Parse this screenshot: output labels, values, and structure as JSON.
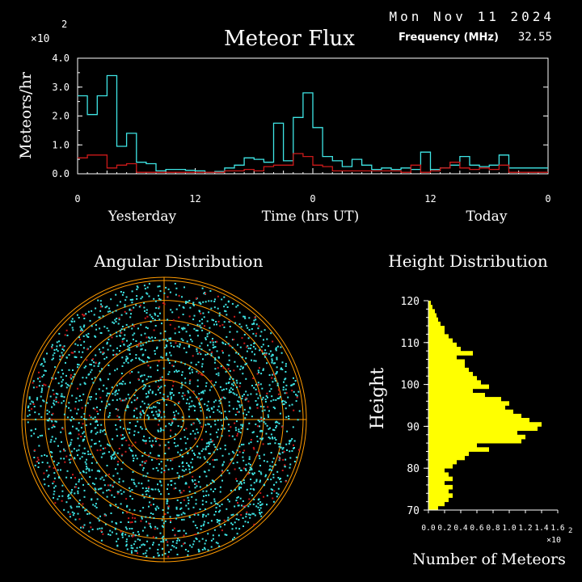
{
  "header": {
    "date": "Mon Nov 11 2024",
    "title": "Meteor Flux",
    "frequency_label": "Frequency (MHz)",
    "frequency_value": "32.55",
    "y_scale_base": "×10",
    "y_scale_exp": "2"
  },
  "colors": {
    "background": "#000000",
    "axes": "#ffffff",
    "cyan_series": "#3fe6e6",
    "red_series": "#cc1a1a",
    "height_bars": "#ffff00",
    "polar_rings": "#ff9a00"
  },
  "chart_data": [
    {
      "type": "line",
      "subtype": "step",
      "title": "Meteor Flux",
      "ylabel": "Meteors/hr",
      "xlabel": "Time (hrs UT)",
      "x_section_labels": [
        "Yesterday",
        "Today"
      ],
      "x_tick_labels": [
        "0",
        "12",
        "0",
        "12",
        "0"
      ],
      "y_tick_labels": [
        "0.0",
        "1.0",
        "2.0",
        "3.0",
        "4.0"
      ],
      "y_multiplier": "×10^2",
      "xlim": [
        0,
        48
      ],
      "ylim": [
        0,
        4.0
      ],
      "x": [
        0,
        1,
        2,
        3,
        4,
        5,
        6,
        7,
        8,
        9,
        10,
        11,
        12,
        13,
        14,
        15,
        16,
        17,
        18,
        19,
        20,
        21,
        22,
        23,
        24,
        25,
        26,
        27,
        28,
        29,
        30,
        31,
        32,
        33,
        34,
        35,
        36,
        37,
        38,
        39,
        40,
        41,
        42,
        43,
        44,
        45,
        46,
        47
      ],
      "series": [
        {
          "name": "",
          "color": "cyan",
          "values": [
            2.7,
            2.05,
            2.7,
            3.4,
            0.95,
            1.4,
            0.4,
            0.35,
            0.1,
            0.15,
            0.15,
            0.12,
            0.1,
            0.05,
            0.08,
            0.2,
            0.3,
            0.55,
            0.5,
            0.4,
            1.75,
            0.45,
            1.95,
            2.8,
            1.6,
            0.6,
            0.45,
            0.25,
            0.5,
            0.3,
            0.15,
            0.2,
            0.15,
            0.2,
            0.15,
            0.75,
            0.15,
            0.2,
            0.3,
            0.6,
            0.3,
            0.25,
            0.3,
            0.65,
            0.2,
            0.2,
            0.2,
            0.2
          ]
        },
        {
          "name": "",
          "color": "red",
          "values": [
            0.55,
            0.65,
            0.65,
            0.2,
            0.3,
            0.35,
            0.05,
            0.05,
            0.05,
            0.05,
            0.05,
            0.05,
            0.05,
            0.05,
            0.05,
            0.1,
            0.1,
            0.15,
            0.1,
            0.25,
            0.3,
            0.3,
            0.7,
            0.6,
            0.3,
            0.25,
            0.1,
            0.1,
            0.1,
            0.1,
            0.1,
            0.1,
            0.1,
            0.05,
            0.3,
            0.05,
            0.1,
            0.2,
            0.4,
            0.2,
            0.15,
            0.2,
            0.15,
            0.3,
            0.05,
            0.05,
            0.05,
            0.05
          ]
        }
      ]
    },
    {
      "type": "scatter",
      "subtype": "polar",
      "title": "Angular Distribution",
      "rings": 7,
      "series": [
        {
          "name": "",
          "color": "cyan",
          "count_estimate": 2200
        },
        {
          "name": "",
          "color": "red",
          "count_estimate": 300
        }
      ]
    },
    {
      "type": "bar",
      "orientation": "horizontal",
      "title": "Height Distribution",
      "ylabel": "Height",
      "xlabel": "Number of Meteors",
      "x_multiplier": "×10^2",
      "x_tick_labels": [
        "0.0",
        "0.2",
        "0.4",
        "0.6",
        "0.8",
        "1.0",
        "1.2",
        "1.4",
        "1.6"
      ],
      "y_tick_labels": [
        "70",
        "80",
        "90",
        "100",
        "110",
        "120"
      ],
      "xlim": [
        0,
        1.6
      ],
      "ylim": [
        70,
        120
      ],
      "heights": [
        70,
        71,
        72,
        73,
        74,
        75,
        76,
        77,
        78,
        79,
        80,
        81,
        82,
        83,
        84,
        85,
        86,
        87,
        88,
        89,
        90,
        91,
        92,
        93,
        94,
        95,
        96,
        97,
        98,
        99,
        100,
        101,
        102,
        103,
        104,
        105,
        106,
        107,
        108,
        109,
        110,
        111,
        112,
        113,
        114,
        115,
        116,
        117,
        118,
        119
      ],
      "values": [
        0.12,
        0.2,
        0.25,
        0.3,
        0.25,
        0.3,
        0.2,
        0.3,
        0.25,
        0.2,
        0.3,
        0.35,
        0.45,
        0.5,
        0.75,
        0.6,
        1.15,
        1.2,
        1.1,
        1.35,
        1.4,
        1.25,
        1.15,
        1.05,
        0.95,
        1.0,
        0.9,
        0.7,
        0.55,
        0.75,
        0.65,
        0.6,
        0.55,
        0.5,
        0.45,
        0.45,
        0.35,
        0.55,
        0.4,
        0.35,
        0.3,
        0.25,
        0.2,
        0.2,
        0.15,
        0.12,
        0.1,
        0.08,
        0.05,
        0.03
      ]
    }
  ],
  "panels": {
    "angular_title": "Angular Distribution",
    "height_title": "Height Distribution"
  }
}
